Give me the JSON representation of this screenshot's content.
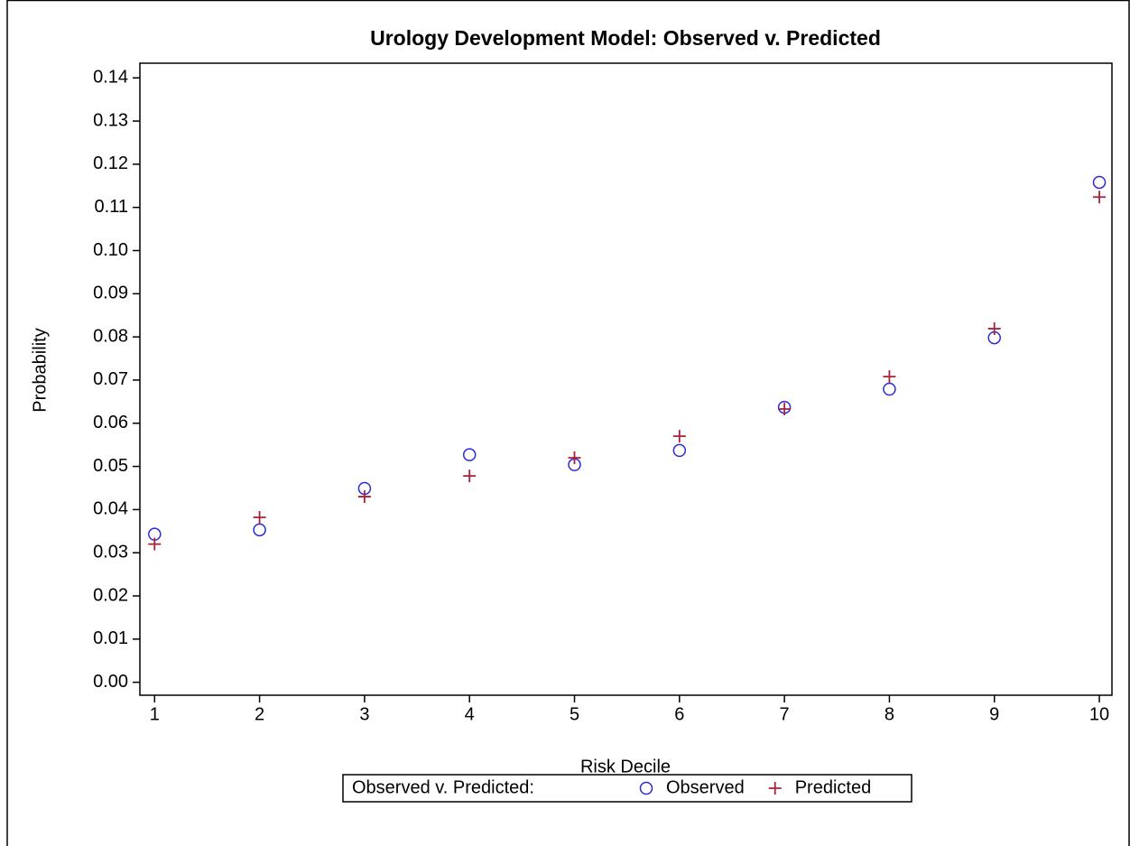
{
  "chart_data": {
    "type": "scatter",
    "title": "Urology Development Model: Observed v. Predicted",
    "x_label": "Risk Decile",
    "y_label": "Probability",
    "legend_title": "Observed v. Predicted:",
    "legend_position": "bottom",
    "x": [
      1,
      2,
      3,
      4,
      5,
      6,
      7,
      8,
      9,
      10
    ],
    "series": [
      {
        "name": "Observed",
        "color": "#2a2ad8",
        "marker": "circle",
        "values": [
          0.0343,
          0.0353,
          0.0449,
          0.0527,
          0.0504,
          0.0537,
          0.0637,
          0.0679,
          0.0798,
          0.1158
        ]
      },
      {
        "name": "Predicted",
        "color": "#a8203c",
        "marker": "plus",
        "values": [
          0.032,
          0.0382,
          0.043,
          0.0478,
          0.052,
          0.057,
          0.0633,
          0.0708,
          0.0819,
          0.1124
        ]
      }
    ],
    "xlim": [
      0.86,
      10.12
    ],
    "xticks": [
      1,
      2,
      3,
      4,
      5,
      6,
      7,
      8,
      9,
      10
    ],
    "ylim": [
      -0.003,
      0.1434
    ],
    "yticks": [
      {
        "value": 0,
        "label": "0.00"
      },
      0.01,
      0.02,
      0.03,
      0.04,
      0.05,
      0.06,
      0.07,
      0.08,
      0.09,
      {
        "value": 0.1,
        "label": "0.10"
      },
      0.11,
      0.12,
      0.13,
      0.14
    ]
  }
}
